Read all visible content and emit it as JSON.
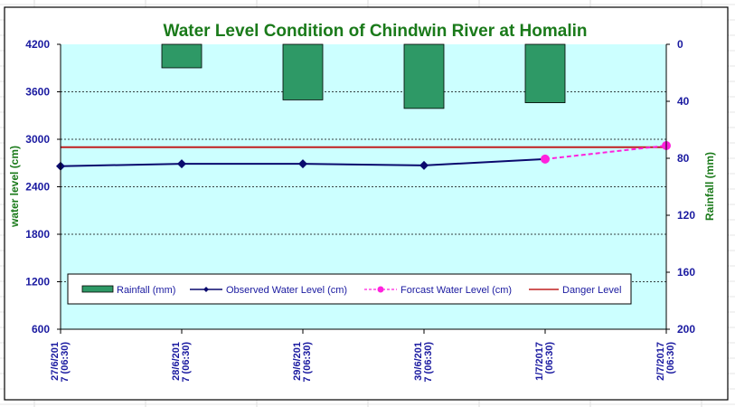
{
  "chart_data": {
    "type": "bar+line",
    "title": "Water Level Condition  of Chindwin River at Homalin",
    "ylabel": "water level (cm)",
    "y2label": "Rainfall (mm)",
    "ylim": [
      600,
      4200
    ],
    "yticks": [
      600,
      1200,
      1800,
      2400,
      3000,
      3600,
      4200
    ],
    "y2lim": [
      0,
      200
    ],
    "y2ticks": [
      0,
      40,
      80,
      120,
      160,
      200
    ],
    "y2_inverted": true,
    "grid": true,
    "categories": [
      [
        "27/6/201",
        "7 (06:30)"
      ],
      [
        "28/6/201",
        "7 (06:30)"
      ],
      [
        "29/6/201",
        "7 (06:30)"
      ],
      [
        "30/6/201",
        "7 (06:30)"
      ],
      [
        "1/7/2017",
        "(06:30)"
      ],
      [
        "2/7/2017",
        "(06:30)"
      ]
    ],
    "series": [
      {
        "name": "Rainfall (mm)",
        "type": "bar",
        "axis": "right",
        "color": "#2e9966",
        "values": [
          0,
          16.5,
          39,
          45,
          41,
          0
        ]
      },
      {
        "name": "Observed Water Level (cm)",
        "type": "line",
        "color": "#0a0a6e",
        "values": [
          2660,
          2690,
          2690,
          2670,
          2750,
          null
        ]
      },
      {
        "name": "Forcast Water Level (cm)",
        "type": "line-dashed",
        "color": "#ff22dd",
        "values": [
          null,
          null,
          null,
          null,
          2750,
          2920
        ]
      },
      {
        "name": "Danger Level",
        "type": "hline",
        "color": "#c02020",
        "value": 2900
      }
    ],
    "legend_position": "bottom-inside"
  }
}
